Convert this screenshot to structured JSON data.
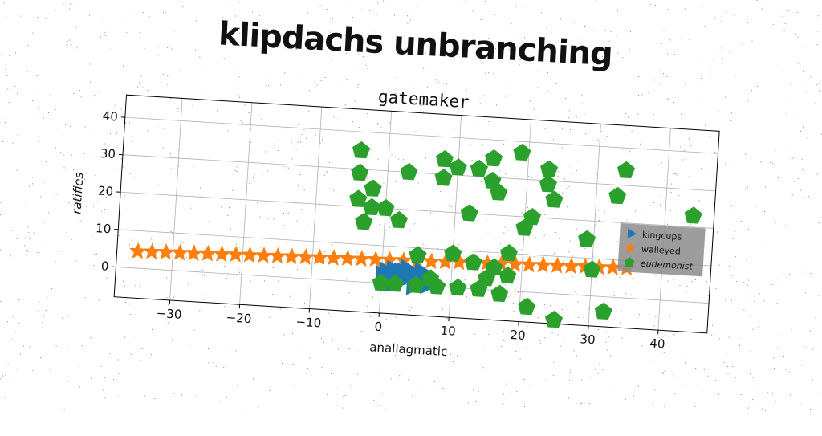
{
  "header": {
    "title": "klipdachs unbranching"
  },
  "chart_data": {
    "type": "scatter",
    "title": "gatemaker",
    "xlabel": "anallagmatic",
    "ylabel": "ratifies",
    "xlim": [
      -38,
      47
    ],
    "ylim": [
      -8,
      46
    ],
    "xticks": [
      -30,
      -20,
      -10,
      0,
      10,
      20,
      30,
      40
    ],
    "yticks": [
      0,
      10,
      20,
      30,
      40
    ],
    "grid": true,
    "legend_position": "right",
    "colors": {
      "kingcups": "#1f77b4",
      "walleyed": "#ff7f0e",
      "eudemonist": "#2ca02c"
    },
    "series": [
      {
        "name": "kingcups",
        "marker": "triangle-right",
        "x": [
          0,
          0.5,
          1,
          1.5,
          2,
          2.5,
          3,
          3.5,
          4,
          4.5,
          5,
          5.5,
          6,
          0.5,
          1.5,
          2.5,
          4.5,
          5.5,
          6.5,
          1,
          3,
          5,
          6
        ],
        "y": [
          2.5,
          3.5,
          1.5,
          4,
          2.5,
          3.5,
          1.5,
          4.5,
          2.5,
          3,
          1.5,
          4,
          2.5,
          0.5,
          0,
          0.5,
          -0.5,
          0.5,
          0,
          3,
          3.5,
          2,
          1
        ]
      },
      {
        "name": "walleyed",
        "marker": "star",
        "x": [
          -35,
          -33,
          -31,
          -29,
          -27,
          -25,
          -23,
          -21,
          -19,
          -17,
          -15,
          -13,
          -11,
          -9,
          -7,
          -5,
          -3,
          -1,
          1,
          3,
          5,
          7,
          9,
          11,
          13,
          15,
          17,
          19,
          21,
          23,
          25,
          27,
          29,
          31,
          33,
          35
        ],
        "y": [
          4.5,
          4.6,
          4.7,
          4.8,
          4.9,
          5.0,
          5.1,
          5.2,
          5.3,
          5.4,
          5.5,
          5.6,
          5.7,
          5.8,
          5.9,
          6.0,
          6.1,
          6.2,
          6.3,
          6.4,
          6.5,
          6.6,
          6.7,
          6.8,
          6.9,
          7.0,
          7.1,
          7.2,
          7.3,
          7.4,
          7.5,
          7.6,
          7.7,
          7.8,
          7.9,
          8.0
        ]
      },
      {
        "name": "eudemonist",
        "marker": "pentagon",
        "x": [
          -4,
          -4,
          -2,
          -2,
          0,
          2,
          3,
          5,
          8,
          8,
          10,
          10,
          12,
          13,
          15,
          15,
          16,
          18,
          19,
          20,
          21,
          23,
          23,
          24,
          29,
          30,
          33,
          34,
          44,
          -3,
          -4,
          0,
          2,
          5,
          8,
          10,
          13,
          16,
          18,
          7,
          15,
          11,
          14,
          17,
          21,
          25,
          32
        ],
        "y": [
          35,
          29,
          25,
          20,
          20,
          17,
          30,
          8,
          34,
          29,
          32,
          9,
          20,
          32,
          35,
          29,
          26,
          10,
          37,
          17,
          20,
          29,
          33,
          25,
          15,
          7,
          27,
          34,
          23,
          16,
          22,
          0,
          0,
          0,
          0,
          9,
          7,
          6,
          4,
          2,
          3,
          0,
          0,
          -1,
          -4,
          -7,
          -4
        ]
      }
    ]
  }
}
